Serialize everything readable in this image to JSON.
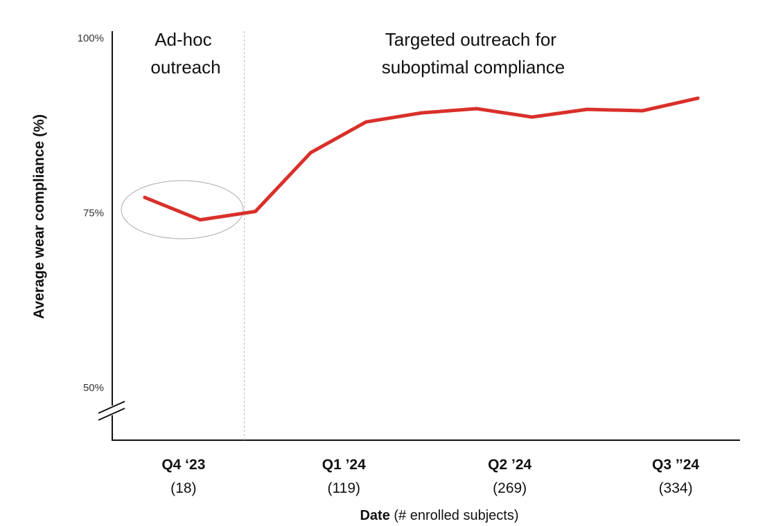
{
  "chart_data": {
    "type": "line",
    "title": "",
    "ylabel": "Average wear compliance (%)",
    "xlabel": {
      "bold": "Date",
      "rest": " (# enrolled subjects)"
    },
    "ylim": [
      50,
      100
    ],
    "axis_break": true,
    "grid": false,
    "y_ticks": [
      {
        "value": 100,
        "label": "100%"
      },
      {
        "value": 75,
        "label": "75%"
      },
      {
        "value": 50,
        "label": "50%"
      }
    ],
    "x_ticks": [
      {
        "index": 0.7,
        "label": "Q4 ‘23",
        "sub": "(18)"
      },
      {
        "index": 3.6,
        "label": "Q1 ’24",
        "sub": "(119)"
      },
      {
        "index": 6.6,
        "label": "Q2 ’24",
        "sub": "(269)"
      },
      {
        "index": 9.6,
        "label": "Q3 ’’24",
        "sub": "(334)"
      }
    ],
    "series": [
      {
        "color": "#d9302a",
        "points": [
          {
            "x": 0,
            "y": 77.2
          },
          {
            "x": 1,
            "y": 74.0
          },
          {
            "x": 2,
            "y": 75.2
          },
          {
            "x": 3,
            "y": 83.6
          },
          {
            "x": 4,
            "y": 88.0
          },
          {
            "x": 5,
            "y": 89.3
          },
          {
            "x": 6,
            "y": 89.9
          },
          {
            "x": 7,
            "y": 88.7
          },
          {
            "x": 8,
            "y": 89.8
          },
          {
            "x": 9,
            "y": 89.6
          },
          {
            "x": 10,
            "y": 91.4
          }
        ]
      }
    ],
    "divider_after_index": 1.8,
    "annotations": [
      {
        "lines": [
          "Ad-hoc",
          "outreach"
        ]
      },
      {
        "lines": [
          "Targeted  outreach for",
          "suboptimal compliance"
        ]
      }
    ],
    "highlight": "ellipse around Q4 ‘23 segment"
  }
}
